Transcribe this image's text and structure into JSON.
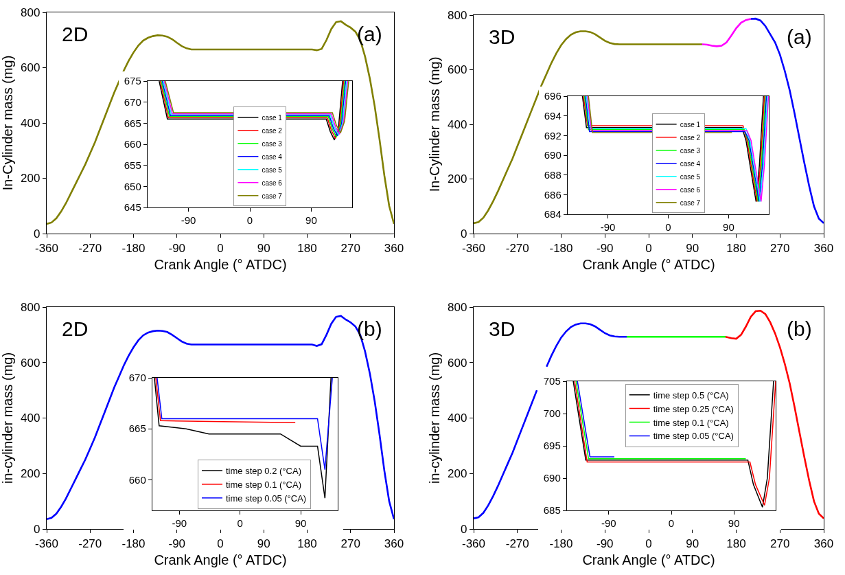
{
  "chart_data": [
    {
      "type": "line",
      "xlabel": "Crank Angle (° ATDC)",
      "ylabel": "In-Cylinder mass (mg)",
      "annotations": [
        "2D",
        "(a)"
      ],
      "xlim": [
        -360,
        360
      ],
      "xticks": [
        -360,
        -270,
        -180,
        -90,
        0,
        90,
        180,
        270,
        360
      ],
      "ylim": [
        0,
        800
      ],
      "yticks": [
        0,
        200,
        400,
        600,
        800
      ],
      "legend": false,
      "grid": false,
      "series": [
        {
          "color": "#808000",
          "x": [
            -360,
            -350,
            -340,
            -330,
            -320,
            -310,
            -300,
            -290,
            -280,
            -270,
            -260,
            -250,
            -240,
            -230,
            -220,
            -210,
            -200,
            -190,
            -180,
            -170,
            -160,
            -150,
            -140,
            -130,
            -120,
            -110,
            -100,
            -90,
            -80,
            -70,
            -60,
            0,
            100,
            190,
            200,
            210,
            220,
            230,
            240,
            250,
            260,
            270,
            280,
            290,
            300,
            310,
            320,
            330,
            340,
            350,
            360
          ],
          "values": [
            35,
            40,
            55,
            80,
            110,
            145,
            180,
            215,
            250,
            290,
            330,
            375,
            420,
            465,
            510,
            550,
            590,
            625,
            655,
            680,
            698,
            708,
            714,
            717,
            716,
            712,
            703,
            690,
            678,
            670,
            666,
            666,
            666,
            666,
            663,
            668,
            700,
            740,
            765,
            768,
            755,
            745,
            730,
            700,
            640,
            560,
            460,
            340,
            210,
            100,
            35
          ]
        }
      ]
    },
    {
      "type": "line",
      "xlim": [
        -150,
        150
      ],
      "xticks": [
        -90,
        0,
        90
      ],
      "ylim": [
        645,
        675
      ],
      "yticks": [
        645,
        650,
        655,
        660,
        665,
        670,
        675
      ],
      "legend": "bottom",
      "grid": false,
      "series": [
        {
          "name": "case 1",
          "color": "#000000",
          "x": [
            -133,
            -121,
            112,
            118,
            124,
            130,
            136
          ],
          "values": [
            675,
            666.0,
            666.0,
            663.0,
            661.0,
            664.0,
            675
          ]
        },
        {
          "name": "case 2",
          "color": "#ff0000",
          "x": [
            -131.5,
            -119.5,
            113.5,
            119.5,
            125.5,
            131.5,
            137.5
          ],
          "values": [
            675,
            666.3,
            666.3,
            663.3,
            661.4,
            664.3,
            675
          ]
        },
        {
          "name": "case 3",
          "color": "#00ff00",
          "x": [
            -130,
            -118,
            115,
            121,
            127,
            133,
            139
          ],
          "values": [
            675,
            666.6,
            666.6,
            663.6,
            661.7,
            664.6,
            675
          ]
        },
        {
          "name": "case 4",
          "color": "#0000ff",
          "x": [
            -128.5,
            -116.5,
            116.5,
            122.5,
            128.5,
            134.5,
            140.5
          ],
          "values": [
            675,
            666.8,
            666.8,
            663.8,
            662.0,
            664.8,
            675
          ]
        },
        {
          "name": "case 5",
          "color": "#00ffff",
          "x": [
            -127,
            -115,
            118,
            124,
            130,
            136,
            142
          ],
          "values": [
            675,
            667.0,
            667.0,
            664.0,
            662.2,
            665.0,
            675
          ]
        },
        {
          "name": "case 6",
          "color": "#ff00ff",
          "x": [
            -125.5,
            -113.5,
            119.5,
            125.5,
            131.5,
            137.5,
            143.5
          ],
          "values": [
            675,
            667.2,
            667.2,
            664.2,
            662.4,
            665.2,
            675
          ]
        },
        {
          "name": "case 7",
          "color": "#808000",
          "x": [
            -124,
            -112,
            121,
            127,
            133,
            139,
            145
          ],
          "values": [
            675,
            667.5,
            667.5,
            664.5,
            662.7,
            665.5,
            675
          ]
        }
      ]
    },
    {
      "type": "line",
      "xlabel": "Crank Angle (° ATDC)",
      "ylabel": "In-Cylinder mass (mg)",
      "annotations": [
        "3D",
        "(a)"
      ],
      "xlim": [
        -360,
        360
      ],
      "xticks": [
        -360,
        -270,
        -180,
        -90,
        0,
        90,
        180,
        270,
        360
      ],
      "ylim": [
        0,
        800
      ],
      "yticks": [
        0,
        200,
        400,
        600,
        800
      ],
      "legend": false,
      "grid": false,
      "series": [
        {
          "color": "#808000",
          "x": [
            -360,
            -350,
            -340,
            -330,
            -320,
            -310,
            -300,
            -290,
            -280,
            -270,
            -260,
            -250,
            -240,
            -230,
            -220,
            -210,
            -200,
            -190,
            -180,
            -170,
            -160,
            -150,
            -140,
            -130,
            -120,
            -110,
            -100,
            -90,
            -80,
            -70,
            -60,
            0,
            100,
            110
          ],
          "values": [
            38,
            42,
            58,
            85,
            118,
            155,
            195,
            235,
            275,
            320,
            365,
            410,
            455,
            500,
            545,
            585,
            625,
            660,
            690,
            712,
            728,
            737,
            741,
            741,
            738,
            730,
            718,
            706,
            698,
            694,
            693,
            693,
            693,
            693
          ]
        },
        {
          "color": "#ff00ff",
          "x": [
            110,
            120,
            130,
            140,
            150,
            160,
            170,
            180,
            190,
            200,
            210
          ],
          "values": [
            693,
            692,
            688,
            686,
            688,
            700,
            725,
            752,
            772,
            782,
            786
          ]
        },
        {
          "color": "#0000ff",
          "x": [
            210,
            220,
            230,
            240,
            250,
            260,
            270,
            280,
            290,
            300,
            310,
            320,
            330,
            340,
            350,
            360
          ],
          "values": [
            786,
            787,
            780,
            760,
            730,
            700,
            655,
            595,
            525,
            440,
            350,
            260,
            175,
            100,
            55,
            38
          ]
        }
      ]
    },
    {
      "type": "line",
      "xlim": [
        -150,
        150
      ],
      "xticks": [
        -90,
        0,
        90
      ],
      "ylim": [
        684,
        696
      ],
      "yticks": [
        684,
        686,
        688,
        690,
        692,
        694,
        696
      ],
      "legend": "bottom",
      "grid": false,
      "series": [
        {
          "name": "case 1",
          "color": "#000000",
          "x": [
            -128,
            -122,
            110,
            116,
            122,
            131,
            136,
            142
          ],
          "values": [
            696,
            692.8,
            692.8,
            691.5,
            689,
            685.3,
            689,
            696
          ]
        },
        {
          "name": "case 2",
          "color": "#ff0000",
          "x": [
            -126.5,
            -120.5,
            111.5,
            117.5,
            123.5,
            132.5,
            137.5,
            143.5
          ],
          "values": [
            696,
            693.0,
            693.0,
            691.5,
            689,
            685.3,
            689,
            696
          ]
        },
        {
          "name": "case 3",
          "color": "#00ff00",
          "x": [
            -125,
            -119,
            113,
            119,
            125,
            134,
            139,
            145
          ],
          "values": [
            696,
            692.6,
            692.6,
            691.5,
            689,
            685.3,
            689,
            696
          ]
        },
        {
          "name": "case 4",
          "color": "#0000ff",
          "x": [
            -123.5,
            -117.5,
            114.5,
            120.5,
            126.5,
            135.5,
            140.5,
            146.5
          ],
          "values": [
            696,
            692.4,
            692.4,
            691.5,
            689,
            685.3,
            689,
            696
          ]
        },
        {
          "name": "case 5",
          "color": "#00ffff",
          "x": [
            -122,
            -116,
            116,
            122,
            128,
            137,
            142,
            148
          ],
          "values": [
            696,
            692.7,
            692.7,
            691.5,
            689,
            685.3,
            689,
            696
          ]
        },
        {
          "name": "case 6",
          "color": "#ff00ff",
          "x": [
            -120.5,
            -114.5,
            117.5,
            123.5,
            129.5,
            138.5,
            143.5,
            149.5
          ],
          "values": [
            696,
            692.5,
            692.5,
            691.5,
            689,
            685.3,
            689,
            696
          ]
        },
        {
          "name": "case 7",
          "color": "#808000",
          "x": [
            -119,
            -113,
            95
          ],
          "values": [
            696,
            692.3,
            692.3
          ]
        }
      ]
    },
    {
      "type": "line",
      "xlabel": "Crank Angle (° ATDC)",
      "ylabel": "in-cylinder mass (mg)",
      "annotations": [
        "2D",
        "(b)"
      ],
      "xlim": [
        -360,
        360
      ],
      "xticks": [
        -360,
        -270,
        -180,
        -90,
        0,
        90,
        180,
        270,
        360
      ],
      "ylim": [
        0,
        800
      ],
      "yticks": [
        0,
        200,
        400,
        600,
        800
      ],
      "legend": false,
      "grid": false,
      "series": [
        {
          "color": "#0000ff",
          "x": [
            -360,
            -350,
            -340,
            -330,
            -320,
            -310,
            -300,
            -290,
            -280,
            -270,
            -260,
            -250,
            -240,
            -230,
            -220,
            -210,
            -200,
            -190,
            -180,
            -170,
            -160,
            -150,
            -140,
            -130,
            -120,
            -110,
            -100,
            -90,
            -80,
            -70,
            -60,
            0,
            100,
            190,
            200,
            210,
            220,
            230,
            240,
            250,
            260,
            270,
            280,
            290,
            300,
            310,
            320,
            330,
            340,
            350,
            360
          ],
          "values": [
            35,
            40,
            55,
            80,
            110,
            145,
            180,
            215,
            250,
            290,
            330,
            375,
            420,
            465,
            510,
            550,
            590,
            625,
            655,
            680,
            698,
            708,
            713,
            715,
            714,
            710,
            700,
            688,
            676,
            668,
            665,
            665,
            665,
            665,
            660,
            666,
            700,
            740,
            765,
            768,
            755,
            745,
            730,
            700,
            640,
            560,
            460,
            340,
            210,
            100,
            35
          ]
        }
      ]
    },
    {
      "type": "line",
      "xlim": [
        -130,
        145
      ],
      "xticks": [
        -90,
        0,
        90
      ],
      "ylim": [
        657,
        670
      ],
      "yticks": [
        660,
        665,
        670
      ],
      "legend": "bottom",
      "grid": false,
      "series": [
        {
          "name": "time step 0.2 (°CA)",
          "color": "#000000",
          "x": [
            -127,
            -120,
            -80,
            -46,
            60,
            90,
            115,
            126,
            135
          ],
          "values": [
            670,
            665.3,
            665,
            664.5,
            664.5,
            663.3,
            663.3,
            658.2,
            670
          ]
        },
        {
          "name": "time step 0.1 (°CA)",
          "color": "#ff0000",
          "x": [
            -125,
            -118,
            82
          ],
          "values": [
            670,
            665.8,
            665.6
          ]
        },
        {
          "name": "time step 0.05 (°CA)",
          "color": "#0000ff",
          "x": [
            -123,
            -116,
            115,
            126,
            137
          ],
          "values": [
            670,
            666,
            666,
            661,
            670
          ]
        }
      ]
    },
    {
      "type": "line",
      "xlabel": "Crank Angle (° ATDC)",
      "ylabel": "in-cylinder mass (mg)",
      "annotations": [
        "3D",
        "(b)"
      ],
      "xlim": [
        -360,
        360
      ],
      "xticks": [
        -360,
        -270,
        -180,
        -90,
        0,
        90,
        180,
        270,
        360
      ],
      "ylim": [
        0,
        800
      ],
      "yticks": [
        0,
        200,
        400,
        600,
        800
      ],
      "legend": false,
      "grid": false,
      "series": [
        {
          "color": "#0000ff",
          "x": [
            -360,
            -350,
            -340,
            -330,
            -320,
            -310,
            -300,
            -290,
            -280,
            -270,
            -260,
            -250,
            -240,
            -230,
            -220,
            -210,
            -200,
            -190,
            -180,
            -170,
            -160,
            -150,
            -140,
            -130,
            -120,
            -110,
            -100,
            -90,
            -80,
            -70,
            -60,
            -45
          ],
          "values": [
            38,
            42,
            58,
            85,
            118,
            155,
            195,
            235,
            275,
            320,
            365,
            410,
            455,
            500,
            null,
            585,
            625,
            660,
            690,
            712,
            728,
            737,
            741,
            741,
            738,
            730,
            718,
            706,
            698,
            694,
            693,
            693
          ]
        },
        {
          "color": "#00ff00",
          "x": [
            -45,
            0,
            100,
            140,
            158
          ],
          "values": [
            693,
            693,
            693,
            693,
            693
          ]
        },
        {
          "color": "#ff0000",
          "x": [
            158,
            170,
            180,
            190,
            200,
            210,
            220,
            230,
            240,
            250,
            260,
            270,
            280,
            290,
            300,
            310,
            320,
            330,
            340,
            350,
            360
          ],
          "values": [
            693,
            688,
            686,
            700,
            730,
            765,
            785,
            787,
            775,
            745,
            705,
            655,
            595,
            525,
            440,
            350,
            260,
            175,
            100,
            55,
            38
          ]
        }
      ]
    },
    {
      "type": "line",
      "xlim": [
        -150,
        150
      ],
      "xticks": [
        -90,
        0,
        90
      ],
      "ylim": [
        685,
        705
      ],
      "yticks": [
        685,
        690,
        695,
        700,
        705
      ],
      "legend": "top",
      "grid": false,
      "series": [
        {
          "name": "time step 0.5 (°CA)",
          "color": "#000000",
          "x": [
            -141,
            -123,
            110,
            118,
            131,
            138,
            147
          ],
          "values": [
            705,
            692.8,
            692.8,
            689,
            685.5,
            690,
            705
          ]
        },
        {
          "name": "time step 0.25 (°CA)",
          "color": "#ff0000",
          "x": [
            -139,
            -121,
            113,
            121,
            134,
            141,
            150
          ],
          "values": [
            705,
            692.5,
            692.5,
            689,
            685.8,
            690,
            705
          ]
        },
        {
          "name": "time step 0.1 (°CA)",
          "color": "#00ff00",
          "x": [
            -137,
            -119,
            107
          ],
          "values": [
            705,
            693.0,
            693.0
          ]
        },
        {
          "name": "time step 0.05 (°CA)",
          "color": "#0000ff",
          "x": [
            -135,
            -117,
            -82
          ],
          "values": [
            705,
            693.3,
            693.3
          ]
        }
      ]
    }
  ]
}
